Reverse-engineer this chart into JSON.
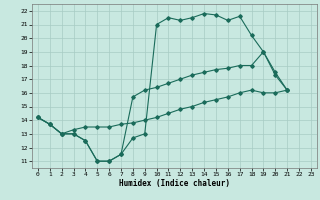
{
  "xlabel": "Humidex (Indice chaleur)",
  "bg_color": "#c8e8e0",
  "grid_color": "#a8ccc4",
  "line_color": "#1a6b5a",
  "xlim": [
    -0.5,
    23.5
  ],
  "ylim": [
    10.5,
    22.5
  ],
  "xticks": [
    0,
    1,
    2,
    3,
    4,
    5,
    6,
    7,
    8,
    9,
    10,
    11,
    12,
    13,
    14,
    15,
    16,
    17,
    18,
    19,
    20,
    21,
    22,
    23
  ],
  "yticks": [
    11,
    12,
    13,
    14,
    15,
    16,
    17,
    18,
    19,
    20,
    21,
    22
  ],
  "line1_x": [
    0,
    1,
    2,
    3,
    4,
    5,
    6,
    7,
    8,
    9,
    10,
    11,
    12,
    13,
    14,
    15,
    16,
    17,
    18,
    19,
    20,
    21
  ],
  "line1_y": [
    14.2,
    13.7,
    13.0,
    13.0,
    12.5,
    11.0,
    11.0,
    11.5,
    12.7,
    13.0,
    21.0,
    21.5,
    21.3,
    21.5,
    21.8,
    21.7,
    21.3,
    21.6,
    20.2,
    19.0,
    17.5,
    16.2
  ],
  "line2_x": [
    0,
    1,
    2,
    3,
    4,
    5,
    6,
    7,
    8,
    9,
    10,
    11,
    12,
    13,
    14,
    15,
    16,
    17,
    18,
    19,
    20,
    21
  ],
  "line2_y": [
    14.2,
    13.7,
    13.0,
    13.0,
    12.5,
    11.0,
    11.0,
    11.5,
    15.7,
    16.2,
    16.4,
    16.7,
    17.0,
    17.3,
    17.5,
    17.7,
    17.8,
    18.0,
    18.0,
    19.0,
    17.3,
    16.2
  ],
  "line3_x": [
    0,
    1,
    2,
    3,
    4,
    5,
    6,
    7,
    8,
    9,
    10,
    11,
    12,
    13,
    14,
    15,
    16,
    17,
    18,
    19,
    20,
    21
  ],
  "line3_y": [
    14.2,
    13.7,
    13.0,
    13.3,
    13.5,
    13.5,
    13.5,
    13.7,
    13.8,
    14.0,
    14.2,
    14.5,
    14.8,
    15.0,
    15.3,
    15.5,
    15.7,
    16.0,
    16.2,
    16.0,
    16.0,
    16.2
  ]
}
